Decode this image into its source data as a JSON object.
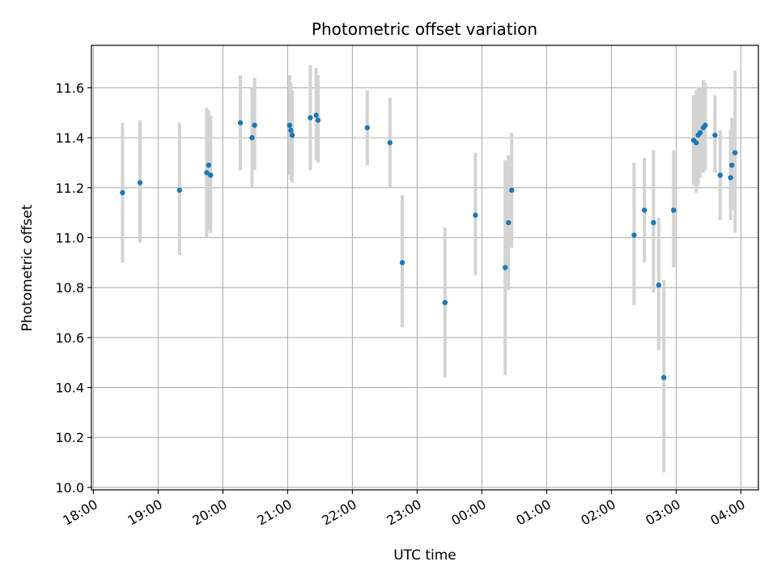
{
  "chart_data": {
    "type": "scatter",
    "title": "Photometric offset variation",
    "xlabel": "UTC time",
    "ylabel": "Photometric offset",
    "x_unit": "hours since 18:00 UTC",
    "xlim": [
      -0.03,
      10.27
    ],
    "ylim": [
      9.99,
      11.77
    ],
    "x_ticks": [
      {
        "value": 0,
        "label": "18:00"
      },
      {
        "value": 1,
        "label": "19:00"
      },
      {
        "value": 2,
        "label": "20:00"
      },
      {
        "value": 3,
        "label": "21:00"
      },
      {
        "value": 4,
        "label": "22:00"
      },
      {
        "value": 5,
        "label": "23:00"
      },
      {
        "value": 6,
        "label": "00:00"
      },
      {
        "value": 7,
        "label": "01:00"
      },
      {
        "value": 8,
        "label": "02:00"
      },
      {
        "value": 9,
        "label": "03:00"
      },
      {
        "value": 10,
        "label": "04:00"
      }
    ],
    "y_ticks": [
      {
        "value": 10.0,
        "label": "10.0"
      },
      {
        "value": 10.2,
        "label": "10.2"
      },
      {
        "value": 10.4,
        "label": "10.4"
      },
      {
        "value": 10.6,
        "label": "10.6"
      },
      {
        "value": 10.8,
        "label": "10.8"
      },
      {
        "value": 11.0,
        "label": "11.0"
      },
      {
        "value": 11.2,
        "label": "11.2"
      },
      {
        "value": 11.4,
        "label": "11.4"
      },
      {
        "value": 11.6,
        "label": "11.6"
      }
    ],
    "grid": true,
    "colors": {
      "point": "#1f77b4",
      "errorbar": "#d3d3d3",
      "grid": "#b0b0b0"
    },
    "points": [
      {
        "x": 0.45,
        "y": 11.18,
        "lo": 10.9,
        "hi": 11.46
      },
      {
        "x": 0.72,
        "y": 11.22,
        "lo": 10.98,
        "hi": 11.47
      },
      {
        "x": 1.33,
        "y": 11.19,
        "lo": 10.93,
        "hi": 11.46
      },
      {
        "x": 1.75,
        "y": 11.26,
        "lo": 11.0,
        "hi": 11.52
      },
      {
        "x": 1.78,
        "y": 11.29,
        "lo": 11.03,
        "hi": 11.51
      },
      {
        "x": 1.81,
        "y": 11.25,
        "lo": 11.02,
        "hi": 11.49
      },
      {
        "x": 2.27,
        "y": 11.46,
        "lo": 11.27,
        "hi": 11.65
      },
      {
        "x": 2.45,
        "y": 11.4,
        "lo": 11.2,
        "hi": 11.6
      },
      {
        "x": 2.49,
        "y": 11.45,
        "lo": 11.27,
        "hi": 11.64
      },
      {
        "x": 3.03,
        "y": 11.45,
        "lo": 11.25,
        "hi": 11.65
      },
      {
        "x": 3.05,
        "y": 11.43,
        "lo": 11.23,
        "hi": 11.62
      },
      {
        "x": 3.07,
        "y": 11.41,
        "lo": 11.22,
        "hi": 11.59
      },
      {
        "x": 3.35,
        "y": 11.48,
        "lo": 11.27,
        "hi": 11.69
      },
      {
        "x": 3.44,
        "y": 11.49,
        "lo": 11.31,
        "hi": 11.68
      },
      {
        "x": 3.47,
        "y": 11.47,
        "lo": 11.3,
        "hi": 11.65
      },
      {
        "x": 4.23,
        "y": 11.44,
        "lo": 11.29,
        "hi": 11.59
      },
      {
        "x": 4.58,
        "y": 11.38,
        "lo": 11.2,
        "hi": 11.56
      },
      {
        "x": 4.77,
        "y": 10.9,
        "lo": 10.64,
        "hi": 11.17
      },
      {
        "x": 5.43,
        "y": 10.74,
        "lo": 10.44,
        "hi": 11.04
      },
      {
        "x": 5.9,
        "y": 11.09,
        "lo": 10.85,
        "hi": 11.34
      },
      {
        "x": 6.36,
        "y": 10.88,
        "lo": 10.45,
        "hi": 11.31
      },
      {
        "x": 6.41,
        "y": 11.06,
        "lo": 10.79,
        "hi": 11.33
      },
      {
        "x": 6.46,
        "y": 11.19,
        "lo": 10.96,
        "hi": 11.42
      },
      {
        "x": 8.35,
        "y": 11.01,
        "lo": 10.73,
        "hi": 11.3
      },
      {
        "x": 8.51,
        "y": 11.11,
        "lo": 10.9,
        "hi": 11.32
      },
      {
        "x": 8.65,
        "y": 11.06,
        "lo": 10.78,
        "hi": 11.35
      },
      {
        "x": 8.73,
        "y": 10.81,
        "lo": 10.55,
        "hi": 11.08
      },
      {
        "x": 8.81,
        "y": 10.44,
        "lo": 10.06,
        "hi": 10.83
      },
      {
        "x": 8.96,
        "y": 11.11,
        "lo": 10.88,
        "hi": 11.35
      },
      {
        "x": 9.27,
        "y": 11.39,
        "lo": 11.21,
        "hi": 11.57
      },
      {
        "x": 9.31,
        "y": 11.38,
        "lo": 11.18,
        "hi": 11.59
      },
      {
        "x": 9.34,
        "y": 11.41,
        "lo": 11.21,
        "hi": 11.6
      },
      {
        "x": 9.37,
        "y": 11.42,
        "lo": 11.24,
        "hi": 11.6
      },
      {
        "x": 9.42,
        "y": 11.44,
        "lo": 11.26,
        "hi": 11.63
      },
      {
        "x": 9.45,
        "y": 11.45,
        "lo": 11.27,
        "hi": 11.62
      },
      {
        "x": 9.6,
        "y": 11.41,
        "lo": 11.26,
        "hi": 11.57
      },
      {
        "x": 9.68,
        "y": 11.25,
        "lo": 11.07,
        "hi": 11.43
      },
      {
        "x": 9.84,
        "y": 11.24,
        "lo": 11.07,
        "hi": 11.43
      },
      {
        "x": 9.86,
        "y": 11.29,
        "lo": 11.11,
        "hi": 11.48
      },
      {
        "x": 9.91,
        "y": 11.34,
        "lo": 11.02,
        "hi": 11.67
      }
    ]
  }
}
